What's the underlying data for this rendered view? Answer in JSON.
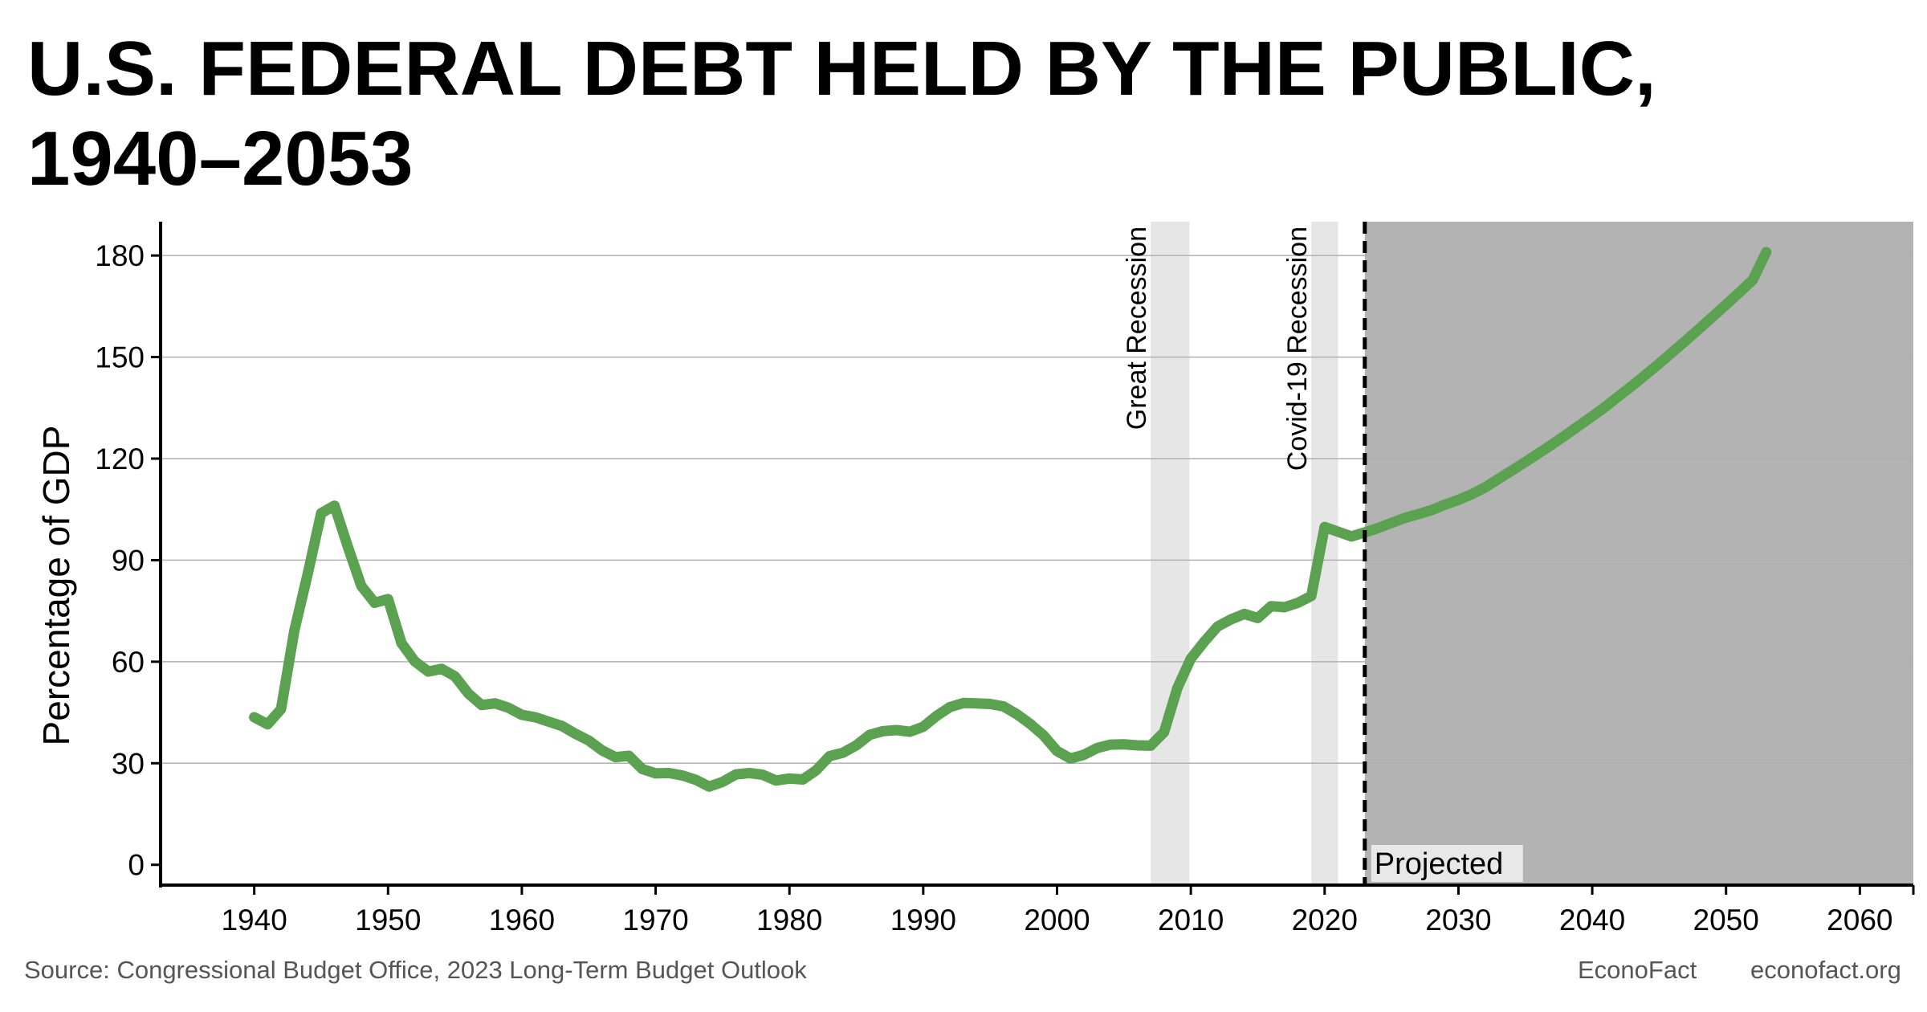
{
  "title_lines": [
    "U.S. FEDERAL DEBT HELD BY THE PUBLIC,",
    "1940–2053"
  ],
  "source": "Source: Congressional Budget Office, 2023 Long-Term Budget Outlook",
  "brand": "EconoFact",
  "site": "econofact.org",
  "colors": {
    "line": "#5aa150",
    "projected_shade": "#b3b3b3",
    "recession_shade": "#e6e6e6",
    "grid": "#b0b0b0",
    "axis": "#000000"
  },
  "chart_data": {
    "type": "line",
    "ylabel": "Percentage of GDP",
    "xlabel": "",
    "xlim": [
      1933,
      2064
    ],
    "ylim": [
      -6,
      190
    ],
    "x_ticks": [
      1940,
      1950,
      1960,
      1970,
      1980,
      1990,
      2000,
      2010,
      2020,
      2030,
      2040,
      2050,
      2060
    ],
    "y_ticks": [
      0,
      30,
      60,
      90,
      120,
      150,
      180
    ],
    "grid": "horizontal",
    "recessions": [
      {
        "label": "Great Recession",
        "start": 2007,
        "end": 2009.9
      },
      {
        "label": "Covid-19 Recession",
        "start": 2019,
        "end": 2021
      }
    ],
    "projection": {
      "label": "Projected",
      "start": 2023
    },
    "series": [
      {
        "values": [
          [
            1940,
            43.6
          ],
          [
            1941,
            41.5
          ],
          [
            1942,
            46.0
          ],
          [
            1943,
            69.2
          ],
          [
            1944,
            86.0
          ],
          [
            1945,
            103.9
          ],
          [
            1946,
            106.1
          ],
          [
            1947,
            93.9
          ],
          [
            1948,
            82.4
          ],
          [
            1949,
            77.4
          ],
          [
            1950,
            78.5
          ],
          [
            1951,
            65.5
          ],
          [
            1952,
            60.1
          ],
          [
            1953,
            57.1
          ],
          [
            1954,
            57.9
          ],
          [
            1955,
            55.7
          ],
          [
            1956,
            50.6
          ],
          [
            1957,
            47.2
          ],
          [
            1958,
            47.7
          ],
          [
            1959,
            46.4
          ],
          [
            1960,
            44.3
          ],
          [
            1961,
            43.6
          ],
          [
            1962,
            42.3
          ],
          [
            1963,
            41.0
          ],
          [
            1964,
            38.7
          ],
          [
            1965,
            36.7
          ],
          [
            1966,
            33.8
          ],
          [
            1967,
            31.8
          ],
          [
            1968,
            32.2
          ],
          [
            1969,
            28.3
          ],
          [
            1970,
            27.0
          ],
          [
            1971,
            27.1
          ],
          [
            1972,
            26.4
          ],
          [
            1973,
            25.1
          ],
          [
            1974,
            23.1
          ],
          [
            1975,
            24.5
          ],
          [
            1976,
            26.7
          ],
          [
            1977,
            27.1
          ],
          [
            1978,
            26.6
          ],
          [
            1979,
            24.9
          ],
          [
            1980,
            25.5
          ],
          [
            1981,
            25.2
          ],
          [
            1982,
            27.9
          ],
          [
            1983,
            32.1
          ],
          [
            1984,
            33.1
          ],
          [
            1985,
            35.3
          ],
          [
            1986,
            38.4
          ],
          [
            1987,
            39.5
          ],
          [
            1988,
            39.8
          ],
          [
            1989,
            39.3
          ],
          [
            1990,
            40.8
          ],
          [
            1991,
            44.0
          ],
          [
            1992,
            46.6
          ],
          [
            1993,
            47.8
          ],
          [
            1994,
            47.7
          ],
          [
            1995,
            47.5
          ],
          [
            1996,
            46.8
          ],
          [
            1997,
            44.5
          ],
          [
            1998,
            41.6
          ],
          [
            1999,
            38.2
          ],
          [
            2000,
            33.6
          ],
          [
            2001,
            31.4
          ],
          [
            2002,
            32.5
          ],
          [
            2003,
            34.5
          ],
          [
            2004,
            35.5
          ],
          [
            2005,
            35.6
          ],
          [
            2006,
            35.3
          ],
          [
            2007,
            35.2
          ],
          [
            2008,
            39.2
          ],
          [
            2009,
            52.3
          ],
          [
            2010,
            60.9
          ],
          [
            2011,
            65.9
          ],
          [
            2012,
            70.4
          ],
          [
            2013,
            72.5
          ],
          [
            2014,
            74.1
          ],
          [
            2015,
            72.9
          ],
          [
            2016,
            76.4
          ],
          [
            2017,
            76.1
          ],
          [
            2018,
            77.4
          ],
          [
            2019,
            79.4
          ],
          [
            2020,
            99.8
          ],
          [
            2021,
            98.4
          ],
          [
            2022,
            97.0
          ],
          [
            2023,
            98.2
          ],
          [
            2024,
            99.5
          ],
          [
            2025,
            101.0
          ],
          [
            2026,
            102.5
          ],
          [
            2027,
            103.6
          ],
          [
            2028,
            104.8
          ],
          [
            2029,
            106.4
          ],
          [
            2030,
            107.8
          ],
          [
            2031,
            109.5
          ],
          [
            2032,
            111.5
          ],
          [
            2033,
            114.0
          ],
          [
            2034,
            116.5
          ],
          [
            2035,
            119.0
          ],
          [
            2036,
            121.6
          ],
          [
            2037,
            124.2
          ],
          [
            2038,
            126.9
          ],
          [
            2039,
            129.7
          ],
          [
            2040,
            132.5
          ],
          [
            2041,
            135.4
          ],
          [
            2042,
            138.5
          ],
          [
            2043,
            141.6
          ],
          [
            2044,
            144.8
          ],
          [
            2045,
            148.1
          ],
          [
            2046,
            151.5
          ],
          [
            2047,
            154.9
          ],
          [
            2048,
            158.4
          ],
          [
            2049,
            161.9
          ],
          [
            2050,
            165.5
          ],
          [
            2051,
            169.1
          ],
          [
            2052,
            172.8
          ],
          [
            2053,
            181.0
          ]
        ]
      }
    ]
  }
}
